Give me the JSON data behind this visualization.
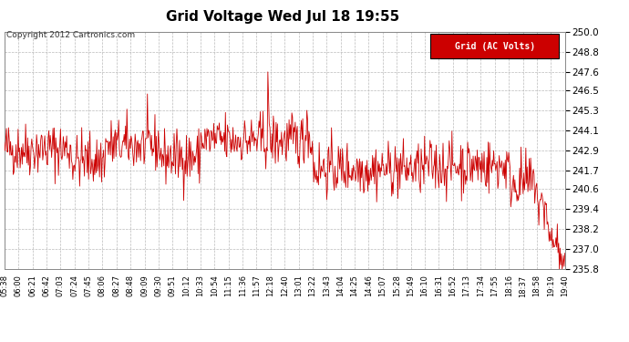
{
  "title": "Grid Voltage Wed Jul 18 19:55",
  "copyright": "Copyright 2012 Cartronics.com",
  "legend_label": "Grid (AC Volts)",
  "legend_bg": "#cc0000",
  "legend_text_color": "#ffffff",
  "line_color": "#cc0000",
  "background_color": "#ffffff",
  "plot_bg_color": "#ffffff",
  "grid_color": "#bbbbbb",
  "ylim": [
    235.8,
    250.0
  ],
  "yticks": [
    235.8,
    237.0,
    238.2,
    239.4,
    240.6,
    241.7,
    242.9,
    244.1,
    245.3,
    246.5,
    247.6,
    248.8,
    250.0
  ],
  "xtick_labels": [
    "05:38",
    "06:00",
    "06:21",
    "06:42",
    "07:03",
    "07:24",
    "07:45",
    "08:06",
    "08:27",
    "08:48",
    "09:09",
    "09:30",
    "09:51",
    "10:12",
    "10:33",
    "10:54",
    "11:15",
    "11:36",
    "11:57",
    "12:18",
    "12:40",
    "13:01",
    "13:22",
    "13:43",
    "14:04",
    "14:25",
    "14:46",
    "15:07",
    "15:28",
    "15:49",
    "16:10",
    "16:31",
    "16:52",
    "17:13",
    "17:34",
    "17:55",
    "18:16",
    "18:37",
    "18:58",
    "19:19",
    "19:40"
  ],
  "num_points": 820,
  "seed": 42
}
